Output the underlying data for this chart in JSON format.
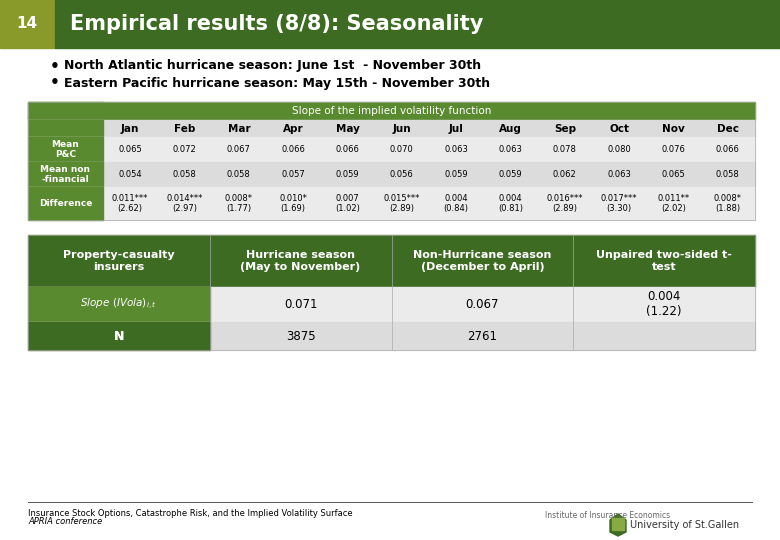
{
  "title": "Empirical results (8/8): Seasonality",
  "slide_number": "14",
  "bullet1": "North Atlantic hurricane season: June 1st  - November 30th",
  "bullet2": "Eastern Pacific hurricane season: May 15th - November 30th",
  "table1_header": "Slope of the implied volatility function",
  "table1_months": [
    "Jan",
    "Feb",
    "Mar",
    "Apr",
    "May",
    "Jun",
    "Jul",
    "Aug",
    "Sep",
    "Oct",
    "Nov",
    "Dec"
  ],
  "table1_row_labels": [
    "Mean\nP&C",
    "Mean non\n-financial",
    "Difference"
  ],
  "table1_data": [
    [
      "0.065",
      "0.072",
      "0.067",
      "0.066",
      "0.066",
      "0.070",
      "0.063",
      "0.063",
      "0.078",
      "0.080",
      "0.076",
      "0.066"
    ],
    [
      "0.054",
      "0.058",
      "0.058",
      "0.057",
      "0.059",
      "0.056",
      "0.059",
      "0.059",
      "0.062",
      "0.063",
      "0.065",
      "0.058"
    ],
    [
      "0.011***\n(2.62)",
      "0.014***\n(2.97)",
      "0.008*\n(1.77)",
      "0.010*\n(1.69)",
      "0.007\n(1.02)",
      "0.015***\n(2.89)",
      "0.004\n(0.84)",
      "0.004\n(0.81)",
      "0.016***\n(2.89)",
      "0.017***\n(3.30)",
      "0.011**\n(2.02)",
      "0.008*\n(1.88)"
    ]
  ],
  "table2_headers": [
    "Property-casualty\ninsurers",
    "Hurricane season\n(May to November)",
    "Non-Hurricane season\n(December to April)",
    "Unpaired two-sided t-\ntest"
  ],
  "table2_row1_data": [
    "",
    "0.071",
    "0.067",
    "0.004\n(1.22)"
  ],
  "table2_row2_data": [
    "",
    "3875",
    "2761",
    ""
  ],
  "footer1": "Insurance Stock Options, Catastrophe Risk, and the Implied Volatility Surface",
  "footer2": "APRIA conference",
  "bg_color": "#ffffff",
  "olive_green": "#8a9a2a",
  "green_dark": "#3d6b22",
  "green_mid": "#5a8a30",
  "row_light": "#dcdcdc",
  "row_lighter": "#ebebeb"
}
